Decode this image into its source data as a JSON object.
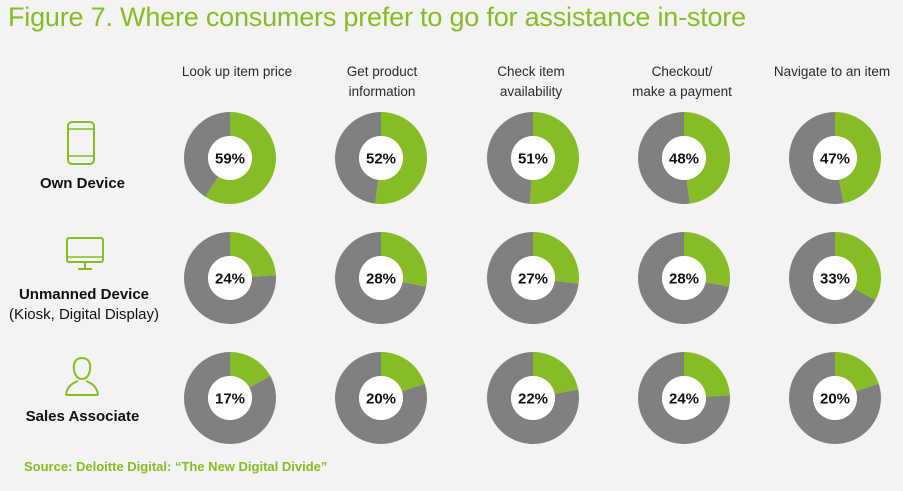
{
  "title": "Figure 7. Where consumers prefer to go for assistance in-store",
  "source": "Source: Deloitte Digital: “The New Digital Divide”",
  "colors": {
    "accent": "#86bc25",
    "remainder": "#808080",
    "hole": "#ffffff"
  },
  "columns": [
    {
      "line1": "Look up item price",
      "line2": ""
    },
    {
      "line1": "Get product",
      "line2": "information"
    },
    {
      "line1": "Check item",
      "line2": "availability"
    },
    {
      "line1": "Checkout/",
      "line2": "make a payment"
    },
    {
      "line1": "Navigate to an item",
      "line2": ""
    }
  ],
  "rows": [
    {
      "label": "Own Device",
      "sublabel": "",
      "icon": "smartphone-icon"
    },
    {
      "label": "Unmanned Device",
      "sublabel": "(Kiosk, Digital Display)",
      "icon": "monitor-icon"
    },
    {
      "label": "Sales Associate",
      "sublabel": "",
      "icon": "person-icon"
    }
  ],
  "chart_data": {
    "type": "pie",
    "subtype": "donut-grid",
    "categories": [
      "Look up item price",
      "Get product information",
      "Check item availability",
      "Checkout/ make a payment",
      "Navigate to an item"
    ],
    "series": [
      {
        "name": "Own Device",
        "values": [
          59,
          52,
          51,
          48,
          47
        ],
        "labels": [
          "59%",
          "52%",
          "51%",
          "48%",
          "47%"
        ]
      },
      {
        "name": "Unmanned Device (Kiosk, Digital Display)",
        "values": [
          24,
          28,
          27,
          28,
          33
        ],
        "labels": [
          "24%",
          "28%",
          "27%",
          "28%",
          "33%"
        ]
      },
      {
        "name": "Sales Associate",
        "values": [
          17,
          20,
          22,
          24,
          20
        ],
        "labels": [
          "17%",
          "20%",
          "22%",
          "24%",
          "20%"
        ]
      }
    ],
    "unit": "%"
  }
}
